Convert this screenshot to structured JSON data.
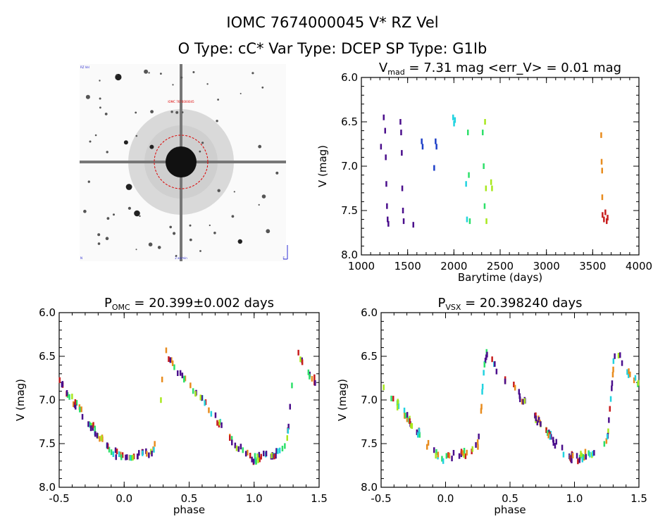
{
  "header": {
    "title_line1": "IOMC 7674000045     V* RZ Vel",
    "title_line2": "O Type: cC*   Var Type: DCEP   SP Type: G1Ib"
  },
  "finder": {
    "label_top_left": "RZ Vel",
    "label_target": "IOMC 7674000045",
    "label_bottom_left": "N",
    "label_bottom_center": "2 arcmin",
    "label_bottom_right": "E"
  },
  "chart_data": [
    {
      "type": "scatter",
      "title": "V_mad = 7.31 mag <err_V> = 0.01 mag",
      "title_parts": {
        "pre": "V",
        "sub": "mad",
        "post": " = 7.31 mag <err_V> = 0.01 mag"
      },
      "xlabel": "Barytime (days)",
      "ylabel": "V (mag)",
      "xlim": [
        1000,
        4000
      ],
      "ylim": [
        8.0,
        6.0
      ],
      "y_inverted": true,
      "xticks": [
        "1000",
        "1500",
        "2000",
        "2500",
        "3000",
        "3500",
        "4000"
      ],
      "yticks": [
        "6.0",
        "6.5",
        "7.0",
        "7.5",
        "8.0"
      ],
      "series": [
        {
          "color": "#4b0f8c",
          "x": [
            1210,
            1240,
            1255,
            1262,
            1268,
            1275,
            1282,
            1290,
            1420,
            1428,
            1435,
            1440,
            1448,
            1455,
            1560
          ],
          "y": [
            6.78,
            6.45,
            6.6,
            6.9,
            7.2,
            7.45,
            7.6,
            7.65,
            6.5,
            6.62,
            6.85,
            7.25,
            7.5,
            7.62,
            7.66
          ]
        },
        {
          "color": "#1e40c8",
          "x": [
            1650,
            1660,
            1785,
            1800,
            1810
          ],
          "y": [
            6.72,
            6.78,
            7.02,
            6.72,
            6.78
          ]
        },
        {
          "color": "#22d3e0",
          "x": [
            1990,
            2000,
            2010,
            2130,
            2140
          ],
          "y": [
            6.45,
            6.52,
            6.48,
            7.2,
            7.6
          ]
        },
        {
          "color": "#2ee06a",
          "x": [
            2150,
            2160,
            2170,
            2310,
            2320,
            2330
          ],
          "y": [
            6.62,
            7.1,
            7.62,
            6.62,
            7.0,
            7.45
          ]
        },
        {
          "color": "#a8e81e",
          "x": [
            2335,
            2345,
            2350,
            2400,
            2410
          ],
          "y": [
            6.5,
            7.25,
            7.62,
            7.18,
            7.25
          ]
        },
        {
          "color": "#e88c1e",
          "x": [
            3590,
            3595,
            3600,
            3602
          ],
          "y": [
            6.65,
            6.95,
            7.05,
            7.35
          ]
        },
        {
          "color": "#c81e1e",
          "x": [
            3605,
            3620,
            3635,
            3650,
            3660
          ],
          "y": [
            7.55,
            7.6,
            7.52,
            7.62,
            7.58
          ]
        }
      ]
    },
    {
      "type": "scatter",
      "title": "P_OMC = 20.399±0.002 days",
      "title_parts": {
        "pre": "P",
        "sub": "OMC",
        "post": " = 20.399±0.002 days"
      },
      "xlabel": "phase",
      "ylabel": "V (mag)",
      "xlim": [
        -0.5,
        1.5
      ],
      "ylim": [
        8.0,
        6.0
      ],
      "y_inverted": true,
      "xticks": [
        "-0.5",
        "0.0",
        "0.5",
        "1.0",
        "1.5"
      ],
      "yticks": [
        "6.0",
        "6.5",
        "7.0",
        "7.5",
        "8.0"
      ],
      "light_curve_phase": [
        0.0,
        0.05,
        0.1,
        0.15,
        0.2,
        0.25,
        0.28,
        0.3,
        0.32,
        0.35,
        0.4,
        0.45,
        0.5,
        0.6,
        0.7,
        0.8,
        0.9,
        1.0
      ],
      "light_curve_mag": [
        7.68,
        7.65,
        7.62,
        7.62,
        7.6,
        7.5,
        7.0,
        6.6,
        6.45,
        6.52,
        6.65,
        6.75,
        6.8,
        7.0,
        7.2,
        7.4,
        7.58,
        7.68
      ]
    },
    {
      "type": "scatter",
      "title": "P_VSX = 20.398240 days",
      "title_parts": {
        "pre": "P",
        "sub": "VSX",
        "post": " = 20.398240 days"
      },
      "xlabel": "phase",
      "ylabel": "V (mag)",
      "xlim": [
        -0.5,
        1.5
      ],
      "ylim": [
        8.0,
        6.0
      ],
      "y_inverted": true,
      "xticks": [
        "-0.5",
        "0.0",
        "0.5",
        "1.0",
        "1.5"
      ],
      "yticks": [
        "6.0",
        "6.5",
        "7.0",
        "7.5",
        "8.0"
      ],
      "light_curve_phase": [
        0.0,
        0.05,
        0.1,
        0.15,
        0.2,
        0.25,
        0.28,
        0.3,
        0.32,
        0.35,
        0.4,
        0.45,
        0.5,
        0.6,
        0.7,
        0.8,
        0.9,
        1.0
      ],
      "light_curve_mag": [
        7.68,
        7.65,
        7.62,
        7.62,
        7.6,
        7.5,
        7.0,
        6.6,
        6.45,
        6.52,
        6.65,
        6.75,
        6.8,
        7.0,
        7.2,
        7.4,
        7.58,
        7.68
      ]
    }
  ],
  "colors": {
    "phase_palette": [
      "#4b0f8c",
      "#22d3e0",
      "#2ee06a",
      "#a8e81e",
      "#e88c1e",
      "#c81e1e",
      "#4b0f8c"
    ]
  }
}
